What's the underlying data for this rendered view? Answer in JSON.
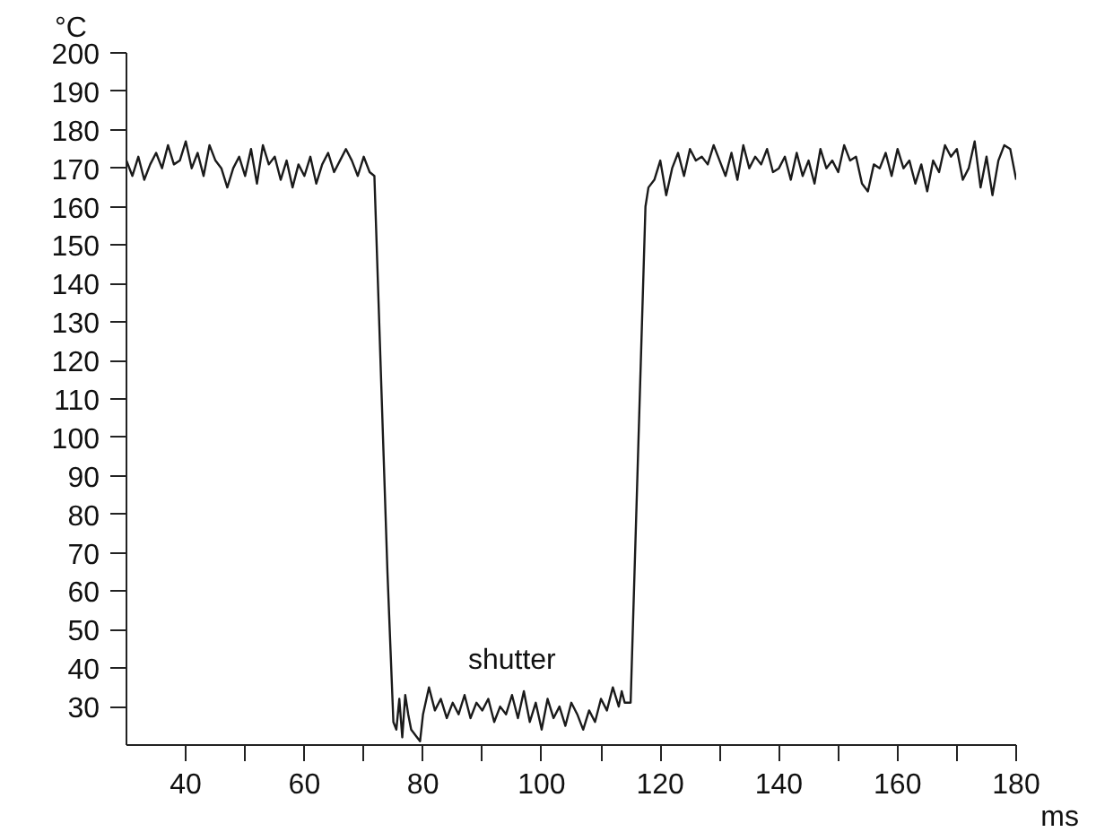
{
  "chart_data": {
    "type": "line",
    "xlabel": "ms",
    "ylabel": "°C",
    "annotations": [
      "shutter"
    ],
    "xlim": [
      30,
      180
    ],
    "ylim": [
      20,
      200
    ],
    "xticks": [
      40,
      {
        "value": 50,
        "label": null
      },
      60,
      {
        "value": 70,
        "label": null
      },
      80,
      {
        "value": 90,
        "label": null
      },
      100,
      {
        "value": 110,
        "label": null
      },
      120,
      {
        "value": 130,
        "label": null
      },
      140,
      {
        "value": 150,
        "label": null
      },
      160,
      {
        "value": 170,
        "label": null
      },
      180
    ],
    "yticks": [
      30,
      40,
      50,
      60,
      70,
      80,
      90,
      100,
      110,
      120,
      130,
      140,
      150,
      160,
      170,
      180,
      190,
      200
    ],
    "grid": false,
    "marker": "none",
    "line_style": "solid",
    "series": [
      {
        "color": "#1a1a1a",
        "x": [
          30,
          31,
          32,
          33,
          34,
          35,
          36,
          37,
          38,
          39,
          40,
          41,
          42,
          43,
          44,
          45,
          46,
          47,
          48,
          49,
          50,
          51,
          52,
          53,
          54,
          55,
          56,
          57,
          58,
          59,
          60,
          61,
          62,
          63,
          64,
          65,
          66,
          67,
          68,
          69,
          70,
          71,
          71.8,
          74,
          75,
          75.5,
          76,
          76.5,
          77,
          77.5,
          78,
          79,
          79.5,
          80,
          81,
          82,
          83,
          84,
          85,
          86,
          87,
          88,
          89,
          90,
          91,
          92,
          93,
          94,
          95,
          96,
          97,
          98,
          99,
          100,
          101,
          102,
          103,
          104,
          105,
          106,
          107,
          108,
          109,
          110,
          111,
          112,
          113,
          113.5,
          114,
          115,
          117.5,
          118,
          119,
          120,
          121,
          122,
          123,
          124,
          125,
          126,
          127,
          128,
          129,
          130,
          131,
          132,
          133,
          134,
          135,
          136,
          137,
          138,
          139,
          140,
          141,
          142,
          143,
          144,
          145,
          146,
          147,
          148,
          149,
          150,
          151,
          152,
          153,
          154,
          155,
          156,
          157,
          158,
          159,
          160,
          161,
          162,
          163,
          164,
          165,
          166,
          167,
          168,
          169,
          170,
          171,
          172,
          173,
          174,
          175,
          176,
          177,
          178,
          179,
          180
        ],
        "values": [
          172,
          168,
          173,
          167,
          171,
          174,
          170,
          176,
          171,
          172,
          177,
          170,
          174,
          168,
          176,
          172,
          170,
          165,
          170,
          173,
          168,
          175,
          166,
          176,
          171,
          173,
          167,
          172,
          165,
          171,
          168,
          173,
          166,
          171,
          174,
          169,
          172,
          175,
          172,
          168,
          173,
          169,
          168,
          65,
          26,
          24,
          32,
          22,
          33,
          28,
          24,
          22,
          21,
          28,
          35,
          29,
          32,
          27,
          31,
          28,
          33,
          27,
          31,
          29,
          32,
          26,
          30,
          28,
          33,
          27,
          34,
          26,
          31,
          24,
          32,
          27,
          30,
          25,
          31,
          28,
          24,
          29,
          26,
          32,
          29,
          35,
          30,
          34,
          31,
          31,
          160,
          165,
          167,
          172,
          163,
          170,
          174,
          168,
          175,
          172,
          173,
          171,
          176,
          172,
          168,
          174,
          167,
          176,
          170,
          173,
          171,
          175,
          169,
          170,
          173,
          167,
          174,
          168,
          172,
          166,
          175,
          170,
          172,
          169,
          176,
          172,
          173,
          166,
          164,
          171,
          170,
          174,
          168,
          175,
          170,
          172,
          166,
          171,
          164,
          172,
          169,
          176,
          173,
          175,
          167,
          170,
          177,
          165,
          173,
          163,
          172,
          176,
          175,
          167
        ]
      }
    ]
  }
}
